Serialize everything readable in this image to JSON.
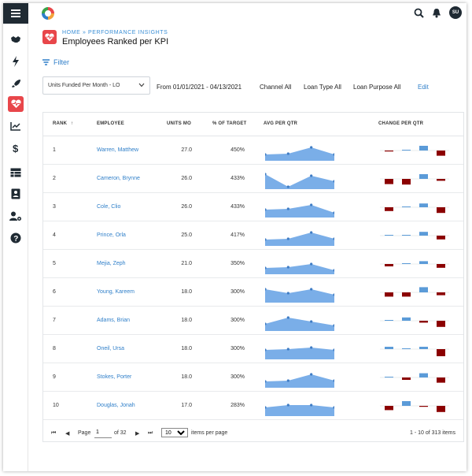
{
  "topbar": {
    "avatar_initials": "SU"
  },
  "header": {
    "breadcrumb": "HOME » PERFORMANCE INSIGHTS",
    "title": "Employees Ranked per KPI",
    "filter_label": "Filter"
  },
  "criteria": {
    "kpi_select": "Units Funded Per Month - LO",
    "date_range": "From 01/01/2021 - 04/13/2021",
    "channel": "Channel All",
    "loan_type": "Loan Type All",
    "loan_purpose": "Loan Purpose All",
    "edit": "Edit"
  },
  "table": {
    "headers": {
      "rank": "RANK",
      "employee": "EMPLOYEE",
      "units": "UNITS MO",
      "target": "% OF TARGET",
      "avg": "AVG PER QTR",
      "change": "CHANGE PER QTR"
    },
    "rows": [
      {
        "rank": "1",
        "employee": "Warren, Matthew",
        "units": "27.0",
        "target": "450%",
        "avg": [
          0.3,
          0.35,
          0.75,
          0.3
        ],
        "change": [
          -0.1,
          0,
          0.5,
          -0.55
        ]
      },
      {
        "rank": "2",
        "employee": "Cameron, Brynne",
        "units": "26.0",
        "target": "433%",
        "avg": [
          0.85,
          0.05,
          0.75,
          0.4
        ],
        "change": [
          -0.55,
          -0.6,
          0.5,
          -0.2
        ]
      },
      {
        "rank": "3",
        "employee": "Cole, Clio",
        "units": "26.0",
        "target": "433%",
        "avg": [
          0.4,
          0.45,
          0.7,
          0.2
        ],
        "change": [
          -0.4,
          0.05,
          0.4,
          -0.6
        ]
      },
      {
        "rank": "4",
        "employee": "Prince, Orla",
        "units": "25.0",
        "target": "417%",
        "avg": [
          0.3,
          0.35,
          0.75,
          0.35
        ],
        "change": [
          0.03,
          0.03,
          0.4,
          -0.4
        ]
      },
      {
        "rank": "5",
        "employee": "Mejia, Zeph",
        "units": "21.0",
        "target": "350%",
        "avg": [
          0.3,
          0.35,
          0.55,
          0.15
        ],
        "change": [
          -0.25,
          0.05,
          0.3,
          -0.4
        ]
      },
      {
        "rank": "6",
        "employee": "Young, Kareem",
        "units": "18.0",
        "target": "300%",
        "avg": [
          0.75,
          0.5,
          0.75,
          0.4
        ],
        "change": [
          -0.45,
          -0.45,
          0.55,
          -0.3
        ]
      },
      {
        "rank": "7",
        "employee": "Adams, Brian",
        "units": "18.0",
        "target": "300%",
        "avg": [
          0.35,
          0.75,
          0.5,
          0.25
        ],
        "change": [
          0.03,
          0.35,
          -0.2,
          -0.65
        ]
      },
      {
        "rank": "8",
        "employee": "Oneil, Ursa",
        "units": "18.0",
        "target": "300%",
        "avg": [
          0.5,
          0.55,
          0.65,
          0.5
        ],
        "change": [
          0.25,
          0.03,
          0.25,
          -0.75
        ]
      },
      {
        "rank": "9",
        "employee": "Stokes, Porter",
        "units": "18.0",
        "target": "300%",
        "avg": [
          0.3,
          0.35,
          0.75,
          0.35
        ],
        "change": [
          0.03,
          -0.25,
          0.45,
          -0.55
        ]
      },
      {
        "rank": "10",
        "employee": "Douglas, Jonah",
        "units": "17.0",
        "target": "283%",
        "avg": [
          0.45,
          0.6,
          0.6,
          0.45
        ],
        "change": [
          -0.45,
          0.5,
          -0.1,
          -0.65
        ]
      }
    ]
  },
  "pager": {
    "page_label": "Page",
    "page_value": "1",
    "of_label": "of 32",
    "per_page_value": "10",
    "per_page_label": "items per page",
    "summary": "1 - 10 of 313 items"
  },
  "colors": {
    "sidebar_dark": "#1f2a33",
    "accent_red": "#e8464a",
    "link_blue": "#2f7fc9",
    "area_blue": "#7aaee8",
    "bar_up": "#5b9bd8",
    "bar_down": "#8b0000"
  }
}
